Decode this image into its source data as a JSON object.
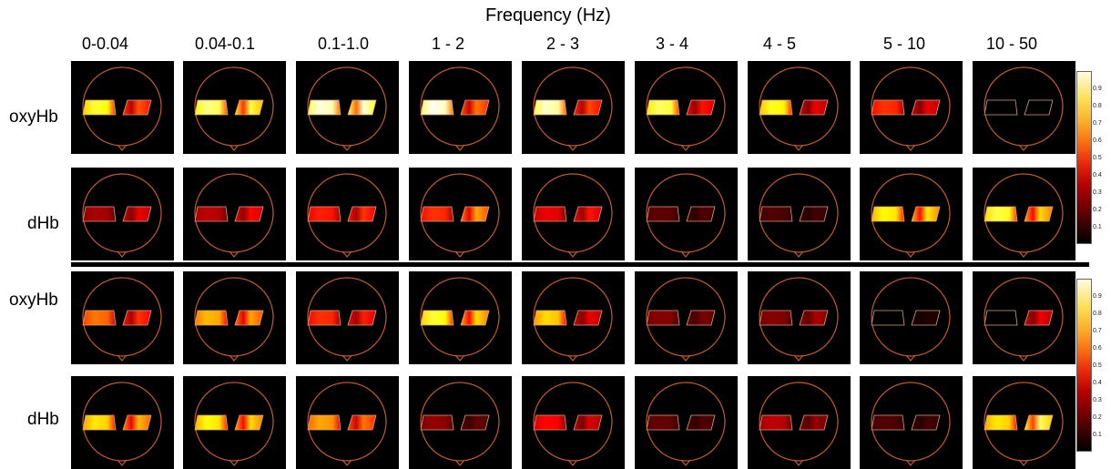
{
  "figure": {
    "axis_title": "Frequency (Hz)",
    "frequency_bands": [
      "0-0.04",
      "0.04-0.1",
      "0.1-1.0",
      "1 - 2",
      "2 - 3",
      "3 - 4",
      "4 - 5",
      "5 - 10",
      "10 - 50"
    ],
    "panels": [
      {
        "rows": [
          {
            "label": "oxyHb",
            "left_intensity": [
              0.8,
              0.88,
              0.97,
              0.99,
              0.95,
              0.85,
              0.78,
              0.45,
              0.0
            ],
            "right_intensity": [
              0.5,
              0.82,
              0.97,
              0.55,
              0.48,
              0.4,
              0.35,
              0.35,
              0.0
            ]
          },
          {
            "label": "dHb",
            "left_intensity": [
              0.25,
              0.28,
              0.42,
              0.45,
              0.35,
              0.14,
              0.12,
              0.75,
              0.82
            ],
            "right_intensity": [
              0.35,
              0.38,
              0.45,
              0.62,
              0.4,
              0.12,
              0.1,
              0.72,
              0.7
            ]
          }
        ]
      },
      {
        "rows": [
          {
            "label": "oxyHb",
            "left_intensity": [
              0.55,
              0.65,
              0.45,
              0.8,
              0.7,
              0.2,
              0.2,
              0.0,
              0.0
            ],
            "right_intensity": [
              0.45,
              0.62,
              0.42,
              0.7,
              0.35,
              0.18,
              0.25,
              0.05,
              0.35
            ]
          },
          {
            "label": "dHb",
            "left_intensity": [
              0.72,
              0.75,
              0.62,
              0.22,
              0.38,
              0.15,
              0.28,
              0.12,
              0.72
            ],
            "right_intensity": [
              0.65,
              0.7,
              0.55,
              0.15,
              0.32,
              0.12,
              0.22,
              0.1,
              0.85
            ]
          }
        ]
      }
    ],
    "colormap": "hot",
    "colorbar_ticks": [
      "0.9",
      "0.8",
      "0.7",
      "0.6",
      "0.5",
      "0.4",
      "0.3",
      "0.2",
      "0.1"
    ]
  }
}
